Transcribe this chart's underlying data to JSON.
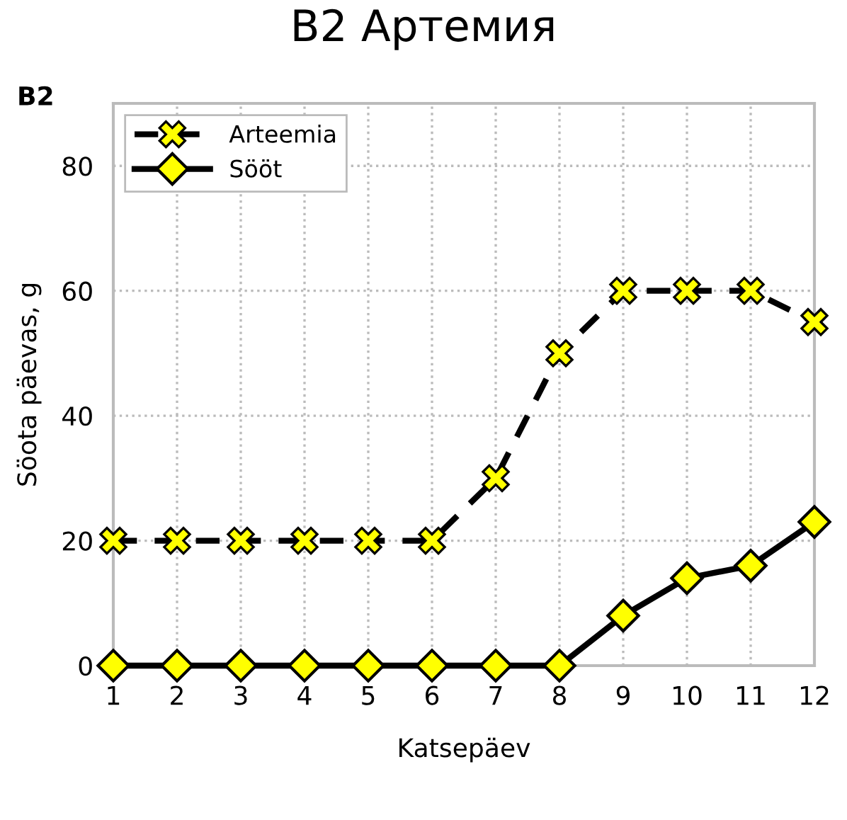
{
  "chart_data": {
    "type": "line",
    "title": "B2 Артемия",
    "xlabel": "Katsepäev",
    "ylabel": "Söota päevas, g",
    "annotations": [
      "B2"
    ],
    "x": [
      1,
      2,
      3,
      4,
      5,
      6,
      7,
      8,
      9,
      10,
      11,
      12
    ],
    "series": [
      {
        "name": "Arteemia",
        "color": "#ffff00",
        "line_style": "dashed",
        "marker": "cross",
        "values": [
          20,
          20,
          20,
          20,
          20,
          20,
          30,
          50,
          60,
          60,
          60,
          55
        ]
      },
      {
        "name": "Sööt",
        "color": "#ffff00",
        "line_style": "solid",
        "marker": "diamond",
        "values": [
          0,
          0,
          0,
          0,
          0,
          0,
          0,
          0,
          8,
          14,
          16,
          23
        ]
      }
    ],
    "xlim": [
      1,
      12
    ],
    "xticks": [
      1,
      2,
      3,
      4,
      5,
      6,
      7,
      8,
      9,
      10,
      11,
      12
    ],
    "ylim": [
      0,
      90
    ],
    "yticks": [
      0,
      20,
      40,
      60,
      80
    ],
    "grid": true,
    "legend": "top left"
  }
}
